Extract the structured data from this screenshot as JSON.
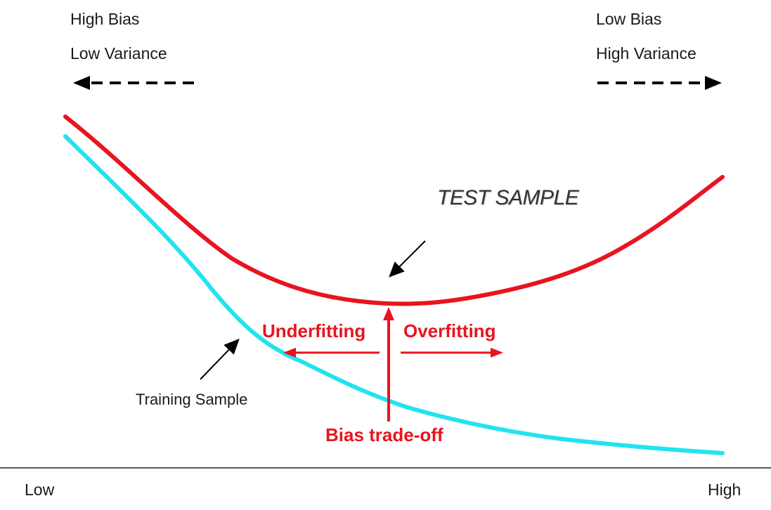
{
  "top_left": {
    "line1": "High Bias",
    "line2": "Low Variance"
  },
  "top_right": {
    "line1": "Low Bias",
    "line2": "High Variance"
  },
  "curves": {
    "test_label": "TEST SAMPLE",
    "training_label": "Training Sample",
    "test_color": "#e8141f",
    "training_color": "#22e3ef"
  },
  "annotations": {
    "underfitting": "Underfitting",
    "overfitting": "Overfitting",
    "tradeoff": "Bias trade-off"
  },
  "axis": {
    "low": "Low",
    "high": "High"
  }
}
